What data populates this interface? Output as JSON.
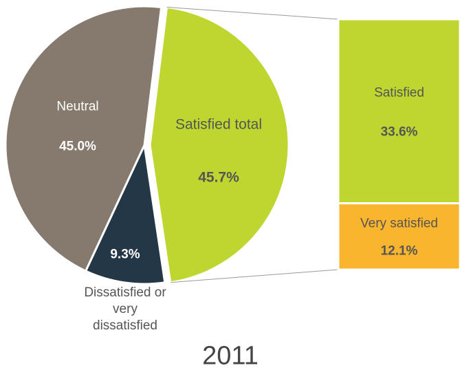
{
  "chart_data": {
    "type": "pie-of-bar",
    "title": "2011",
    "categories": [
      "Satisfied total",
      "Dissatisfied or very dissatisfied",
      "Neutral"
    ],
    "values": [
      45.7,
      9.3,
      45.0
    ],
    "value_labels": [
      "45.7%",
      "9.3%",
      "45.0%"
    ],
    "colors": [
      "#bfd630",
      "#233746",
      "#857a6d"
    ],
    "breakdown": {
      "categories": [
        "Satisfied",
        "Very satisfied"
      ],
      "values": [
        33.6,
        12.1
      ],
      "value_labels": [
        "33.6%",
        "12.1%"
      ],
      "colors": [
        "#bfd630",
        "#f9b52d"
      ]
    }
  }
}
